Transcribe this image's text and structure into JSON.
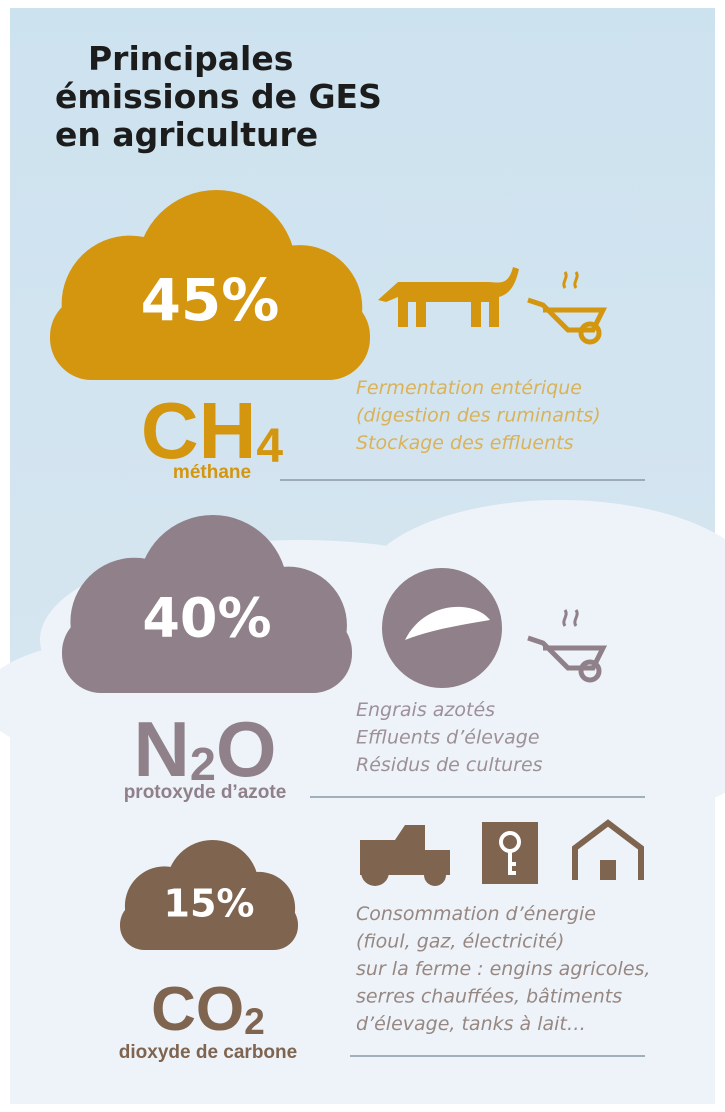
{
  "title": [
    "Principales",
    "émissions de GES",
    "en agriculture"
  ],
  "sections": [
    {
      "percent": "45%",
      "formula": "CH",
      "formula_sub": "4",
      "name": "méthane",
      "sources": [
        "Fermentation entérique",
        "(digestion des ruminants)",
        "Stockage des effluents"
      ]
    },
    {
      "percent": "40%",
      "formula": "N",
      "formula_sub": "2",
      "formula_end": "O",
      "name": "protoxyde d’azote",
      "sources": [
        "Engrais azotés",
        "Effluents d’élevage",
        "Résidus de cultures"
      ]
    },
    {
      "percent": "15%",
      "formula": "CO",
      "formula_sub": "2",
      "name": "dioxyde de carbone",
      "sources": [
        "Consommation d’énergie",
        "(fioul, gaz, électricité)",
        "sur la ferme : engins agricoles,",
        "serres chauffées, bâtiments",
        "d’élevage, tanks à lait…"
      ]
    }
  ]
}
